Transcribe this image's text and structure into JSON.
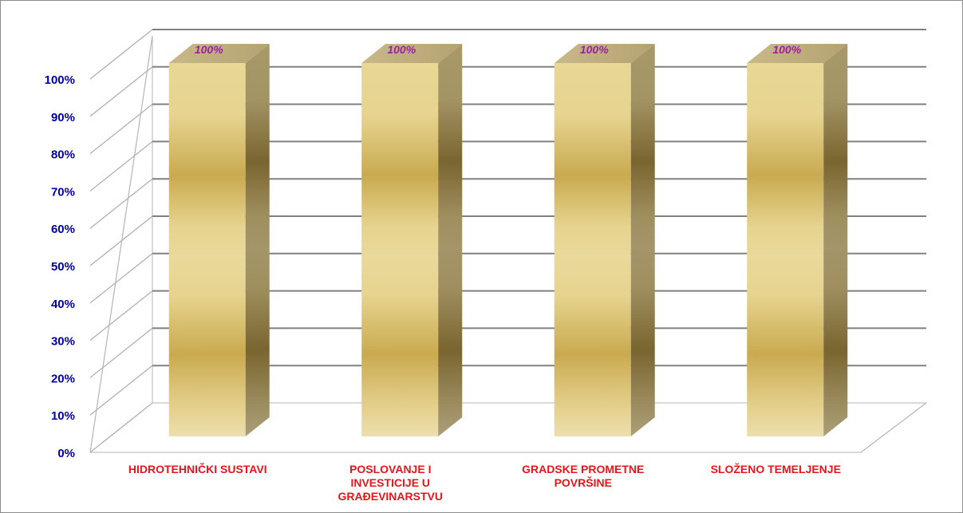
{
  "chart_data": {
    "type": "bar",
    "categories": [
      [
        "HIDROTEHNIČKI  SUSTAVI"
      ],
      [
        "POSLOVANJE I",
        "INVESTICIJE U",
        "GRAĐEVINARSTVU"
      ],
      [
        "GRADSKE PROMETNE",
        "POVRŠINE"
      ],
      [
        "SLOŽENO TEMELJENJE"
      ]
    ],
    "values": [
      100,
      100,
      100,
      100
    ],
    "data_labels": [
      "100%",
      "100%",
      "100%",
      "100%"
    ],
    "y_ticks": [
      "0%",
      "10%",
      "20%",
      "30%",
      "40%",
      "50%",
      "60%",
      "70%",
      "80%",
      "90%",
      "100%"
    ],
    "ylim": [
      0,
      100
    ],
    "grid": true,
    "three_d": true,
    "colors": {
      "ytick": "#0000aa",
      "xcat": "#e8141c",
      "data_label": "#a020a0",
      "grid": "#808080",
      "frame": "#8c8c8c"
    }
  }
}
